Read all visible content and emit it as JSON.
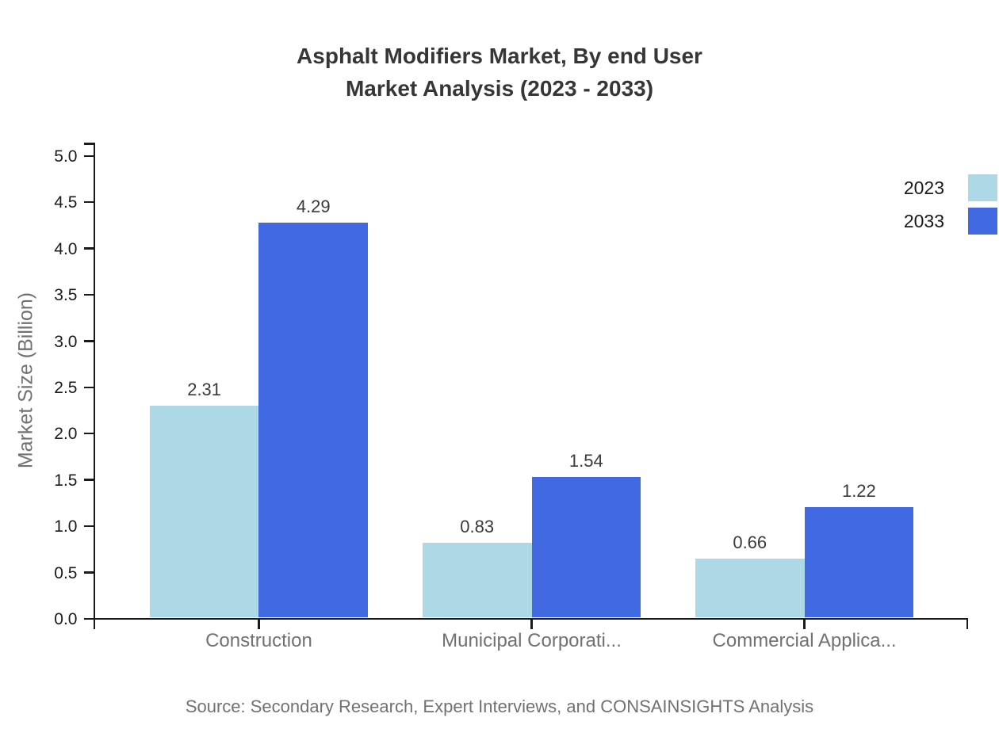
{
  "chart_data": {
    "type": "bar",
    "title": "Asphalt Modifiers Market, By end User Market Analysis (2023 - 2033)",
    "title_lines": [
      "Asphalt Modifiers Market, By end User",
      "Market Analysis (2023 - 2033)"
    ],
    "ylabel": "Market Size (Billion)",
    "xlabel": "",
    "categories": [
      "Construction",
      "Municipal Corporati...",
      "Commercial Applica..."
    ],
    "series": [
      {
        "name": "2023",
        "color": "#ADD8E6",
        "values": [
          2.31,
          0.83,
          0.66
        ],
        "labels": [
          "2.31",
          "0.83",
          "0.66"
        ]
      },
      {
        "name": "2033",
        "color": "#4169E1",
        "values": [
          4.29,
          1.54,
          1.22
        ],
        "labels": [
          "4.29",
          "1.54",
          "1.22"
        ]
      }
    ],
    "ylim": [
      0.0,
      5.0
    ],
    "yticks": [
      "0.0",
      "0.5",
      "1.0",
      "1.5",
      "2.0",
      "2.5",
      "3.0",
      "3.5",
      "4.0",
      "4.5",
      "5.0"
    ],
    "grid": false,
    "legend_position": "top-right",
    "value_labels_shown": true,
    "source": "Source: Secondary Research, Expert Interviews, and CONSAINSIGHTS Analysis",
    "axis_color": "#1a1a1a",
    "text_colors": {
      "title": "#363636",
      "ticks": "#1a1a1a",
      "categories": "#717171",
      "source": "#717171"
    }
  }
}
